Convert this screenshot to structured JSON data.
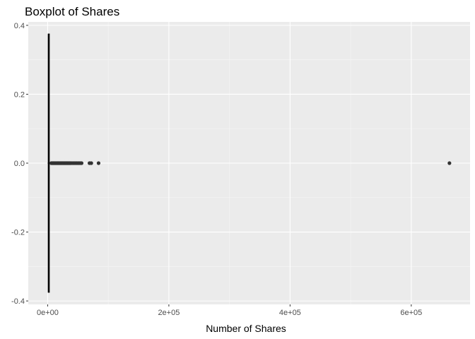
{
  "chart_data": {
    "type": "boxplot",
    "title": "Boxplot of Shares",
    "xlabel": "Number of Shares",
    "ylabel": "",
    "xlim": [
      -32000,
      697000
    ],
    "ylim": [
      -0.41,
      0.41
    ],
    "x_ticks": [
      {
        "value": 0,
        "label": "0e+00"
      },
      {
        "value": 200000,
        "label": "2e+05"
      },
      {
        "value": 400000,
        "label": "4e+05"
      },
      {
        "value": 600000,
        "label": "6e+05"
      }
    ],
    "x_minor_ticks": [
      100000,
      300000,
      500000
    ],
    "y_ticks": [
      {
        "value": 0.4,
        "label": "0.4"
      },
      {
        "value": 0.2,
        "label": "0.2"
      },
      {
        "value": 0.0,
        "label": "0.0"
      },
      {
        "value": -0.2,
        "label": "-0.2"
      },
      {
        "value": -0.4,
        "label": "-0.4"
      }
    ],
    "y_minor_ticks": [
      0.3,
      0.1,
      -0.1,
      -0.3
    ],
    "box": {
      "xmin": 0,
      "q1": 900,
      "median": 1400,
      "q3": 2800,
      "xmax": 5800,
      "ybottom": -0.375,
      "ytop": 0.375
    },
    "outliers": {
      "y": 0,
      "x": [
        6000,
        7000,
        8000,
        9000,
        10000,
        11000,
        12000,
        13000,
        14000,
        15000,
        16000,
        17000,
        18000,
        19000,
        20000,
        21000,
        22000,
        23000,
        24000,
        25000,
        26000,
        27000,
        28000,
        29000,
        30000,
        31000,
        32000,
        33000,
        34000,
        35000,
        36000,
        37000,
        38000,
        40000,
        42000,
        44000,
        46000,
        48000,
        50000,
        52000,
        54000,
        56000,
        69000,
        72000,
        84000,
        663000
      ]
    },
    "colors": {
      "panel": "#ebebeb",
      "grid_major": "#ffffff",
      "grid_minor": "#f5f5f5",
      "box_fill": "#ffffff",
      "box_stroke": "#000000",
      "point": "#333333",
      "tick": "#333333"
    },
    "grid": true,
    "legend": "none"
  }
}
